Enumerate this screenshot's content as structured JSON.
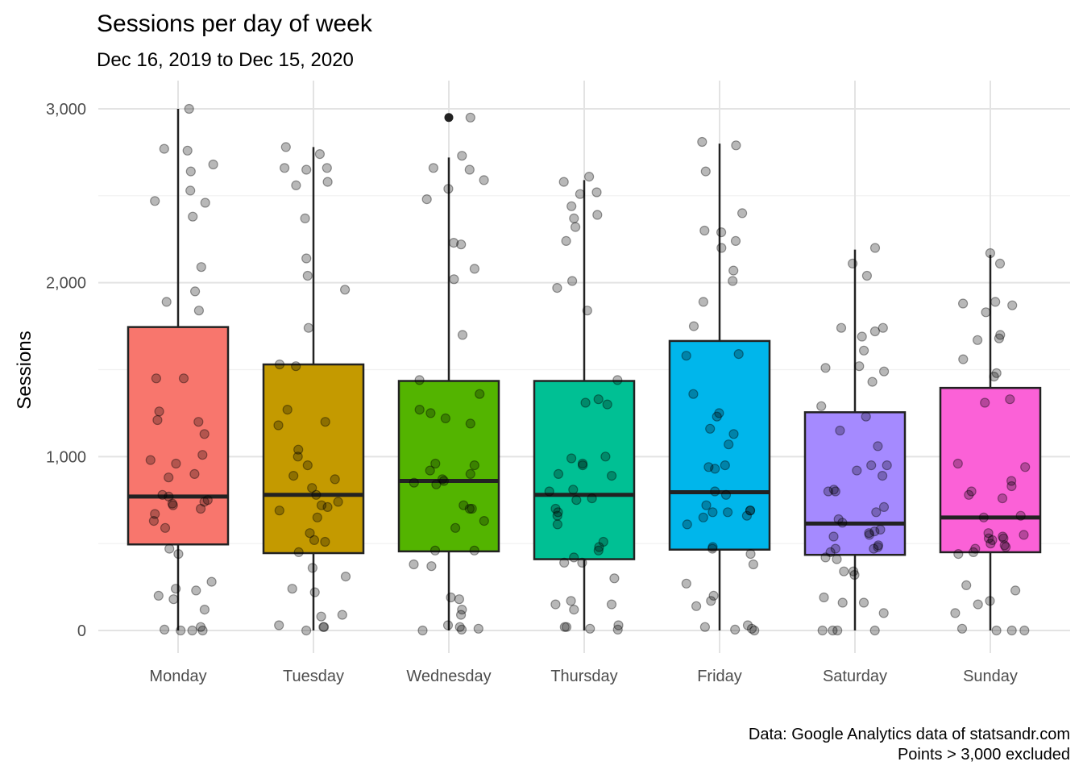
{
  "chart_data": {
    "type": "boxplot",
    "title": "Sessions per day of week",
    "subtitle": "Dec 16, 2019 to Dec 15, 2020",
    "xlabel": "",
    "ylabel": "Sessions",
    "caption": [
      "Data: Google Analytics data of statsandr.com",
      "Points > 3,000 excluded"
    ],
    "ylim": [
      -150,
      3060
    ],
    "yticks": [
      0,
      1000,
      2000,
      3000
    ],
    "ytick_labels": [
      "0",
      "1,000",
      "2,000",
      "3,000"
    ],
    "grid": true,
    "legend": "none",
    "categories": [
      "Monday",
      "Tuesday",
      "Wednesday",
      "Thursday",
      "Friday",
      "Saturday",
      "Sunday"
    ],
    "colors": [
      "#F8766D",
      "#C49A00",
      "#53B400",
      "#00C094",
      "#00B6EB",
      "#A58AFF",
      "#FB61D7"
    ],
    "series": [
      {
        "q1": 495,
        "median": 770,
        "q3": 1745,
        "whisker_low": 0,
        "whisker_high": 3000,
        "outliers": [],
        "points": [
          3000,
          2770,
          2760,
          2680,
          2640,
          2530,
          2470,
          2460,
          2380,
          2090,
          1950,
          1890,
          1840,
          1450,
          1450,
          1260,
          1210,
          1200,
          1130,
          1010,
          980,
          960,
          900,
          880,
          780,
          770,
          750,
          740,
          730,
          720,
          700,
          670,
          630,
          590,
          470,
          440,
          280,
          240,
          230,
          200,
          180,
          120,
          20,
          5,
          0,
          0,
          0
        ]
      },
      {
        "q1": 445,
        "median": 780,
        "q3": 1530,
        "whisker_low": 0,
        "whisker_high": 2780,
        "outliers": [],
        "points": [
          2780,
          2740,
          2660,
          2660,
          2650,
          2580,
          2560,
          2370,
          2140,
          2040,
          1960,
          1740,
          1530,
          1520,
          1270,
          1200,
          1180,
          1040,
          1000,
          950,
          890,
          870,
          820,
          780,
          740,
          720,
          710,
          690,
          650,
          560,
          520,
          510,
          450,
          360,
          310,
          240,
          220,
          90,
          80,
          30,
          20,
          20,
          0
        ]
      },
      {
        "q1": 455,
        "median": 860,
        "q3": 1435,
        "whisker_low": 0,
        "whisker_high": 2720,
        "outliers": [
          2950
        ],
        "points": [
          2950,
          2730,
          2660,
          2650,
          2590,
          2540,
          2480,
          2230,
          2220,
          2080,
          2020,
          1700,
          1440,
          1360,
          1270,
          1250,
          1220,
          1190,
          960,
          950,
          920,
          900,
          870,
          860,
          850,
          840,
          720,
          700,
          700,
          630,
          590,
          460,
          460,
          380,
          370,
          190,
          180,
          120,
          90,
          30,
          20,
          10,
          5,
          0
        ]
      },
      {
        "q1": 410,
        "median": 780,
        "q3": 1435,
        "whisker_low": 0,
        "whisker_high": 2590,
        "outliers": [],
        "points": [
          2610,
          2580,
          2520,
          2510,
          2440,
          2390,
          2370,
          2320,
          2240,
          2010,
          1970,
          1840,
          1440,
          1330,
          1310,
          1300,
          1000,
          990,
          960,
          950,
          900,
          890,
          810,
          800,
          760,
          750,
          700,
          680,
          660,
          610,
          510,
          480,
          460,
          420,
          390,
          390,
          300,
          170,
          150,
          150,
          120,
          30,
          20,
          20,
          10,
          5
        ]
      },
      {
        "q1": 465,
        "median": 795,
        "q3": 1665,
        "whisker_low": 0,
        "whisker_high": 2800,
        "outliers": [],
        "points": [
          2810,
          2790,
          2640,
          2400,
          2300,
          2290,
          2240,
          2200,
          2070,
          2010,
          1890,
          1750,
          1590,
          1580,
          1360,
          1250,
          1230,
          1160,
          1130,
          1070,
          950,
          940,
          930,
          800,
          780,
          720,
          690,
          690,
          680,
          680,
          660,
          650,
          610,
          480,
          470,
          440,
          380,
          270,
          200,
          170,
          140,
          30,
          20,
          10,
          5,
          0
        ]
      },
      {
        "q1": 435,
        "median": 615,
        "q3": 1255,
        "whisker_low": 0,
        "whisker_high": 2190,
        "outliers": [],
        "points": [
          2200,
          2110,
          2040,
          1740,
          1740,
          1720,
          1690,
          1610,
          1520,
          1510,
          1490,
          1430,
          1290,
          1230,
          1150,
          1060,
          950,
          950,
          920,
          890,
          810,
          800,
          800,
          710,
          680,
          640,
          620,
          580,
          570,
          560,
          550,
          540,
          490,
          480,
          470,
          470,
          450,
          420,
          410,
          340,
          340,
          320,
          190,
          160,
          160,
          100,
          0,
          0,
          0,
          0
        ]
      },
      {
        "q1": 450,
        "median": 650,
        "q3": 1395,
        "whisker_low": 0,
        "whisker_high": 2160,
        "outliers": [],
        "points": [
          2170,
          2110,
          1890,
          1880,
          1870,
          1830,
          1700,
          1680,
          1670,
          1560,
          1480,
          1460,
          1330,
          1310,
          960,
          940,
          860,
          830,
          800,
          780,
          760,
          660,
          650,
          560,
          550,
          540,
          530,
          530,
          520,
          500,
          490,
          480,
          470,
          450,
          440,
          260,
          230,
          170,
          150,
          100,
          10,
          0,
          0,
          0
        ]
      }
    ]
  }
}
